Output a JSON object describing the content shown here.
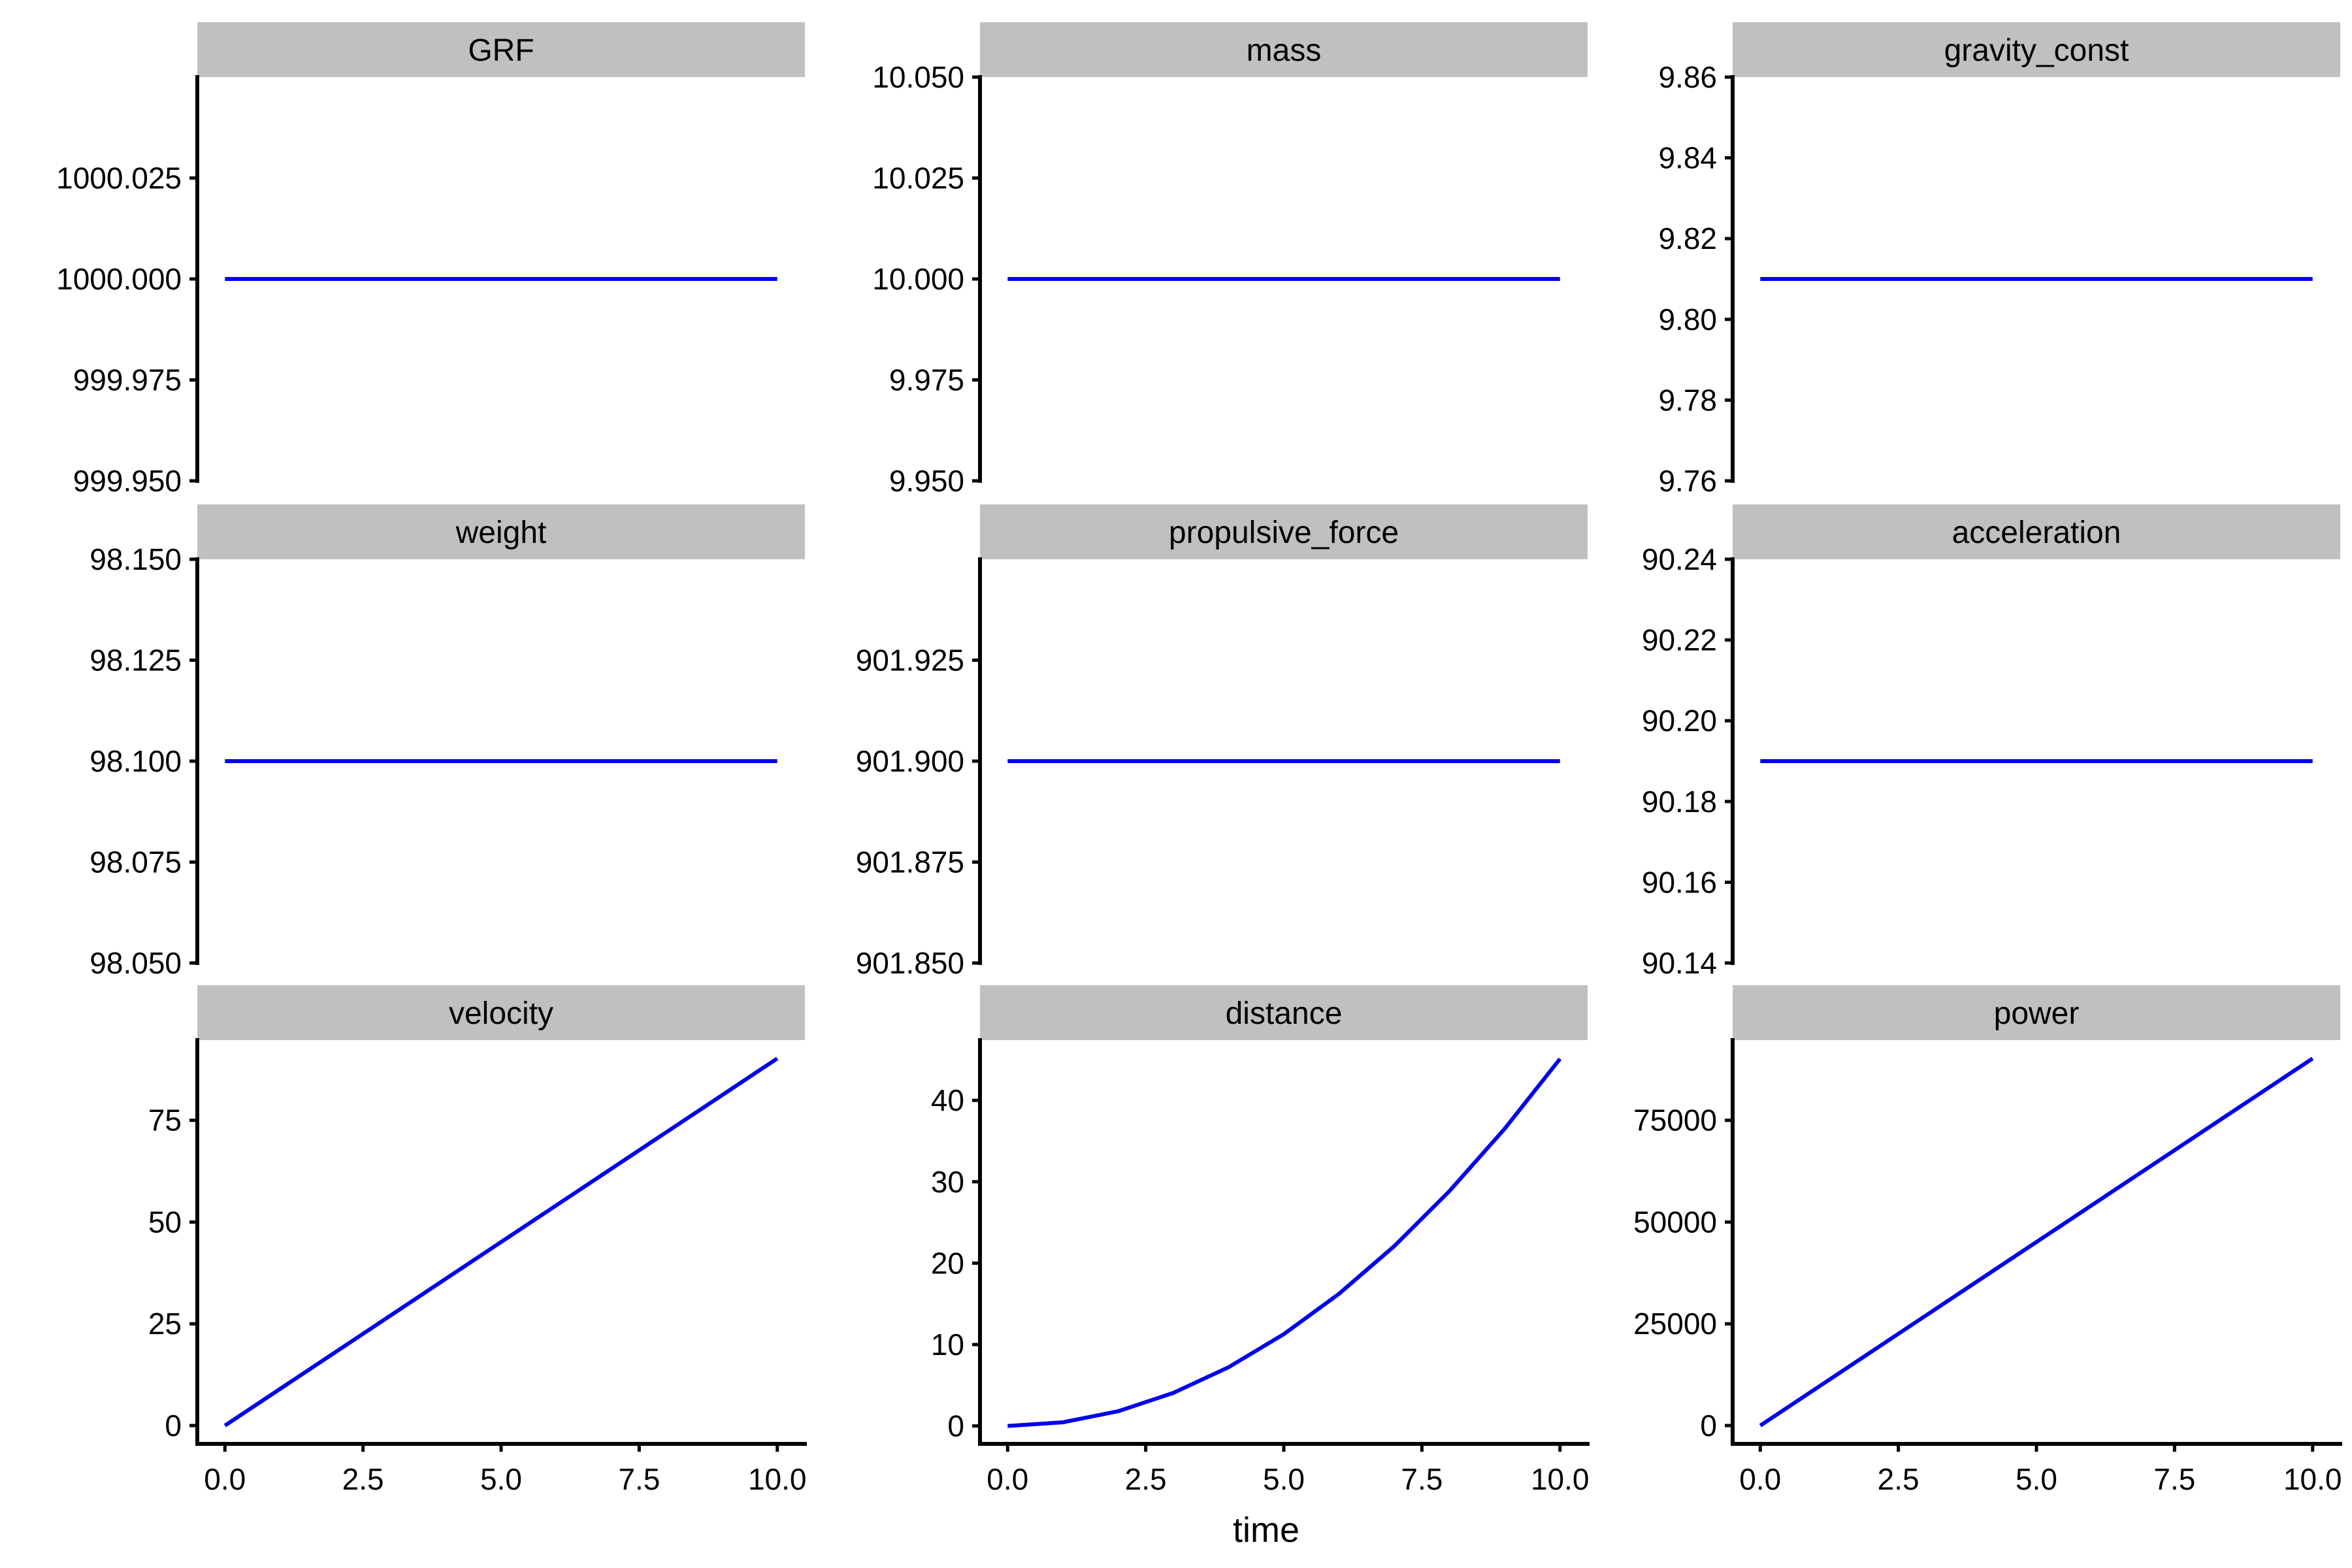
{
  "xlabel": "time",
  "colors": {
    "line": "#0000ee",
    "strip": "#c0c0c0",
    "axis": "#000000",
    "background": "#ffffff"
  },
  "chart_data": [
    {
      "type": "line",
      "title": "GRF",
      "x": [
        0,
        10
      ],
      "y": [
        1000,
        1000
      ],
      "ylim": [
        999.95,
        1000.05
      ],
      "xlim": [
        -0.5,
        10.5
      ],
      "yticks": [
        999.95,
        999.975,
        1000,
        1000.025
      ],
      "yticklabels": [
        "999.950",
        "999.975",
        "1000.000",
        "1000.025"
      ],
      "xticks": [],
      "xticklabels": []
    },
    {
      "type": "line",
      "title": "mass",
      "x": [
        0,
        10
      ],
      "y": [
        10,
        10
      ],
      "ylim": [
        9.95,
        10.05
      ],
      "xlim": [
        -0.5,
        10.5
      ],
      "yticks": [
        9.95,
        9.975,
        10,
        10.025,
        10.05
      ],
      "yticklabels": [
        "9.950",
        "9.975",
        "10.000",
        "10.025",
        "10.050"
      ],
      "xticks": [],
      "xticklabels": []
    },
    {
      "type": "line",
      "title": "gravity_const",
      "x": [
        0,
        10
      ],
      "y": [
        9.81,
        9.81
      ],
      "ylim": [
        9.76,
        9.86
      ],
      "xlim": [
        -0.5,
        10.5
      ],
      "yticks": [
        9.76,
        9.78,
        9.8,
        9.82,
        9.84,
        9.86
      ],
      "yticklabels": [
        "9.76",
        "9.78",
        "9.80",
        "9.82",
        "9.84",
        "9.86"
      ],
      "xticks": [],
      "xticklabels": []
    },
    {
      "type": "line",
      "title": "weight",
      "x": [
        0,
        10
      ],
      "y": [
        98.1,
        98.1
      ],
      "ylim": [
        98.05,
        98.15
      ],
      "xlim": [
        -0.5,
        10.5
      ],
      "yticks": [
        98.05,
        98.075,
        98.1,
        98.125,
        98.15
      ],
      "yticklabels": [
        "98.050",
        "98.075",
        "98.100",
        "98.125",
        "98.150"
      ],
      "xticks": [],
      "xticklabels": []
    },
    {
      "type": "line",
      "title": "propulsive_force",
      "x": [
        0,
        10
      ],
      "y": [
        901.9,
        901.9
      ],
      "ylim": [
        901.85,
        901.95
      ],
      "xlim": [
        -0.5,
        10.5
      ],
      "yticks": [
        901.85,
        901.875,
        901.9,
        901.925
      ],
      "yticklabels": [
        "901.850",
        "901.875",
        "901.900",
        "901.925"
      ],
      "xticks": [],
      "xticklabels": []
    },
    {
      "type": "line",
      "title": "acceleration",
      "x": [
        0,
        10
      ],
      "y": [
        90.19,
        90.19
      ],
      "ylim": [
        90.14,
        90.24
      ],
      "xlim": [
        -0.5,
        10.5
      ],
      "yticks": [
        90.14,
        90.16,
        90.18,
        90.2,
        90.22,
        90.24
      ],
      "yticklabels": [
        "90.14",
        "90.16",
        "90.18",
        "90.20",
        "90.22",
        "90.24"
      ],
      "xticks": [],
      "xticklabels": []
    },
    {
      "type": "line",
      "title": "velocity",
      "x": [
        0,
        10
      ],
      "y": [
        0,
        90.19
      ],
      "ylim": [
        -4.5,
        94.7
      ],
      "xlim": [
        -0.5,
        10.5
      ],
      "yticks": [
        0,
        25,
        50,
        75
      ],
      "yticklabels": [
        "0",
        "25",
        "50",
        "75"
      ],
      "xticks": [
        0,
        2.5,
        5,
        7.5,
        10
      ],
      "xticklabels": [
        "0.0",
        "2.5",
        "5.0",
        "7.5",
        "10.0"
      ]
    },
    {
      "type": "line",
      "title": "distance",
      "x": [
        0,
        1,
        2,
        3,
        4,
        5,
        6,
        7,
        8,
        9,
        10
      ],
      "y": [
        0,
        0.451,
        1.804,
        4.059,
        7.215,
        11.274,
        16.234,
        22.096,
        28.861,
        36.527,
        45.095
      ],
      "ylim": [
        -2.2,
        47.4
      ],
      "xlim": [
        -0.5,
        10.5
      ],
      "yticks": [
        0,
        10,
        20,
        30,
        40
      ],
      "yticklabels": [
        "0",
        "10",
        "20",
        "30",
        "40"
      ],
      "xticks": [
        0,
        2.5,
        5,
        7.5,
        10
      ],
      "xticklabels": [
        "0.0",
        "2.5",
        "5.0",
        "7.5",
        "10.0"
      ]
    },
    {
      "type": "line",
      "title": "power",
      "x": [
        0,
        10
      ],
      "y": [
        0,
        90190
      ],
      "ylim": [
        -4500,
        94700
      ],
      "xlim": [
        -0.5,
        10.5
      ],
      "yticks": [
        0,
        25000,
        50000,
        75000
      ],
      "yticklabels": [
        "0",
        "25000",
        "50000",
        "75000"
      ],
      "xticks": [
        0,
        2.5,
        5,
        7.5,
        10
      ],
      "xticklabels": [
        "0.0",
        "2.5",
        "5.0",
        "7.5",
        "10.0"
      ]
    }
  ]
}
